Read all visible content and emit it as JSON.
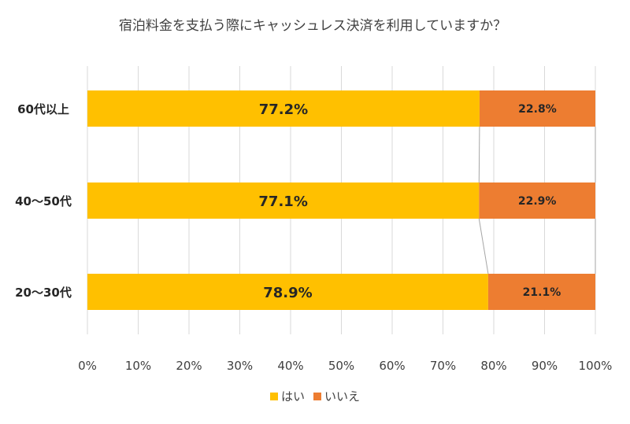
{
  "chart_data": {
    "type": "bar",
    "orientation": "horizontal",
    "stacked": true,
    "percent": true,
    "title": "宿泊料金を支払う際にキャッシュレス決済を利用していますか？",
    "categories": [
      "60代以上",
      "40～50代",
      "20～30代"
    ],
    "series": [
      {
        "name": "はい",
        "color": "#FFC000",
        "values": [
          77.2,
          77.1,
          78.9
        ],
        "labels": [
          "77.2%",
          "77.1%",
          "78.9%"
        ]
      },
      {
        "name": "いいえ",
        "color": "#ED7D31",
        "values": [
          22.8,
          22.9,
          21.1
        ],
        "labels": [
          "22.8%",
          "22.9%",
          "21.1%"
        ]
      }
    ],
    "x_ticks": [
      "0%",
      "10%",
      "20%",
      "30%",
      "40%",
      "50%",
      "60%",
      "70%",
      "80%",
      "90%",
      "100%"
    ],
    "xlim": [
      0,
      100
    ],
    "grid": true,
    "series_lines": true,
    "legend_position": "bottom"
  }
}
